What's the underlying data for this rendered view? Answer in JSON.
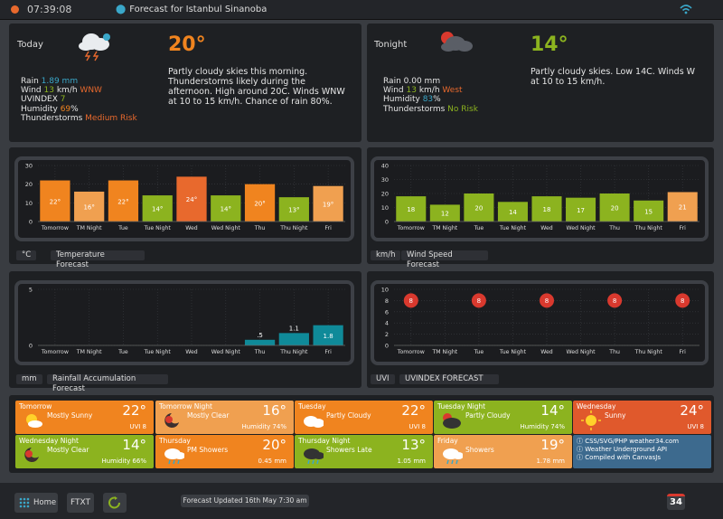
{
  "topbar": {
    "time": "07:39:08",
    "location": "Forecast for Istanbul Sinanoba"
  },
  "today": {
    "title": "Today",
    "temp": "20°",
    "rain_label": "Rain",
    "rain_value": "1.89 mm",
    "wind_label": "Wind",
    "wind_speed": "13",
    "wind_unit": "km/h",
    "wind_dir": "WNW",
    "uv_label": "UVINDEX",
    "uv_value": "7",
    "humidity_label": "Humidity",
    "humidity_value": "69",
    "humidity_unit": "%",
    "storm_label": "Thunderstorms",
    "storm_value": "Medium Risk",
    "description": "Partly cloudy skies this morning. Thunderstorms likely during the afternoon. High around 20C. Winds WNW at 10 to 15 km/h. Chance of rain 80%.",
    "colors": {
      "temp": "#f0841f",
      "rain": "#3aa7c9",
      "wind": "#8cb31f",
      "dir": "#e8692d",
      "uv": "#8cb31f",
      "humidity": "#f0841f",
      "storm": "#e8692d"
    }
  },
  "tonight": {
    "title": "Tonight",
    "temp": "14°",
    "rain_label": "Rain",
    "rain_value": "0.00 mm",
    "wind_label": "Wind",
    "wind_speed": "13",
    "wind_unit": "km/h",
    "wind_dir": "West",
    "humidity_label": "Humidity",
    "humidity_value": "83",
    "humidity_unit": "%",
    "storm_label": "Thunderstorms",
    "storm_value": "No Risk",
    "description": "Partly cloudy skies. Low 14C. Winds W at 10 to 15 km/h.",
    "colors": {
      "temp": "#8cb31f",
      "wind": "#8cb31f",
      "dir": "#e8692d",
      "humidity": "#3aa7c9",
      "storm": "#8cb31f"
    }
  },
  "chart_data": [
    {
      "type": "bar",
      "title": "Temperature Forecast",
      "unit": "°C",
      "categories": [
        "Tomorrow",
        "TM Night",
        "Tue",
        "Tue Night",
        "Wed",
        "Wed Night",
        "Thu",
        "Thu Night",
        "Fri"
      ],
      "values": [
        22,
        16,
        22,
        14,
        24,
        14,
        20,
        13,
        19
      ],
      "labels": [
        "22°",
        "16°",
        "22°",
        "14°",
        "24°",
        "14°",
        "20°",
        "13°",
        "19°"
      ],
      "colors": [
        "#f0841f",
        "#f0a050",
        "#f0841f",
        "#8cb31f",
        "#e8692d",
        "#8cb31f",
        "#f0841f",
        "#8cb31f",
        "#f0a050"
      ],
      "ylim": [
        0,
        30
      ],
      "yticks": [
        "0",
        "10",
        "20",
        "30"
      ]
    },
    {
      "type": "bar",
      "title": "Wind Speed Forecast",
      "unit": "km/h",
      "categories": [
        "Tomorrow",
        "TM Night",
        "Tue",
        "Tue Night",
        "Wed",
        "Wed Night",
        "Thu",
        "Thu Night",
        "Fri"
      ],
      "values": [
        18,
        12,
        20,
        14,
        18,
        17,
        20,
        15,
        21
      ],
      "labels": [
        "18",
        "12",
        "20",
        "14",
        "18",
        "17",
        "20",
        "15",
        "21"
      ],
      "colors": [
        "#8cb31f",
        "#8cb31f",
        "#8cb31f",
        "#8cb31f",
        "#8cb31f",
        "#8cb31f",
        "#8cb31f",
        "#8cb31f",
        "#f0a050"
      ],
      "ylim": [
        0,
        40
      ],
      "yticks": [
        "0",
        "10",
        "20",
        "30",
        "40"
      ]
    },
    {
      "type": "bar",
      "title": "Rainfall Accumulation Forecast",
      "unit": "mm",
      "categories": [
        "Tomorrow",
        "TM Night",
        "Tue",
        "Tue Night",
        "Wed",
        "Wed Night",
        "Thu",
        "Thu Night",
        "Fri"
      ],
      "values": [
        0,
        0,
        0,
        0,
        0,
        0,
        0.5,
        1.1,
        1.8
      ],
      "labels": [
        "",
        "",
        "",
        "",
        "",
        "",
        ".5",
        "1.1",
        "1.8"
      ],
      "colors": [
        "#0f8a99",
        "#0f8a99",
        "#0f8a99",
        "#0f8a99",
        "#0f8a99",
        "#0f8a99",
        "#0f8a99",
        "#0f8a99",
        "#0f8a99"
      ],
      "ylim": [
        0,
        5
      ],
      "yticks": [
        "0",
        "5"
      ]
    },
    {
      "type": "scatter",
      "title": "UVINDEX FORECAST",
      "unit": "UVI",
      "categories": [
        "Tomorrow",
        "TM Night",
        "Tue",
        "Tue Night",
        "Wed",
        "Wed Night",
        "Thu",
        "Thu Night",
        "Fri"
      ],
      "values": [
        8,
        null,
        8,
        null,
        8,
        null,
        8,
        null,
        8
      ],
      "labels": [
        "8",
        "",
        "8",
        "",
        "8",
        "",
        "8",
        "",
        "8"
      ],
      "colors": [
        "#d9392e"
      ],
      "ylim": [
        0,
        10
      ],
      "yticks": [
        "0",
        "2",
        "4",
        "6",
        "8",
        "10"
      ]
    }
  ],
  "forecast_cards": [
    {
      "name": "Tomorrow",
      "desc": "Mostly Sunny",
      "temp": "22°",
      "extra": "UVI 8",
      "bg": "#f0841f",
      "icon": "sun-cloud-icon"
    },
    {
      "name": "Tomorrow Night",
      "desc": "Mostly Clear",
      "temp": "16°",
      "extra": "Humidity 74%",
      "bg": "#f0a050",
      "icon": "moon-icon"
    },
    {
      "name": "Tuesday",
      "desc": "Partly Cloudy",
      "temp": "22°",
      "extra": "UVI 8",
      "bg": "#f0841f",
      "icon": "cloud-icon"
    },
    {
      "name": "Tuesday Night",
      "desc": "Partly Cloudy",
      "temp": "14°",
      "extra": "Humidity 74%",
      "bg": "#8cb31f",
      "icon": "night-cloud-icon"
    },
    {
      "name": "Wednesday",
      "desc": "Sunny",
      "temp": "24°",
      "extra": "UVI 8",
      "bg": "#e0592c",
      "icon": "sun-icon"
    },
    {
      "name": "Wednesday Night",
      "desc": "Mostly Clear",
      "temp": "14°",
      "extra": "Humidity 66%",
      "bg": "#8cb31f",
      "icon": "moon-icon"
    },
    {
      "name": "Thursday",
      "desc": "PM Showers",
      "temp": "20°",
      "extra": "0.45 mm",
      "bg": "#f0841f",
      "icon": "shower-icon"
    },
    {
      "name": "Thursday Night",
      "desc": "Showers Late",
      "temp": "13°",
      "extra": "1.05 mm",
      "bg": "#8cb31f",
      "icon": "night-shower-icon"
    },
    {
      "name": "Friday",
      "desc": "Showers",
      "temp": "19°",
      "extra": "1.78 mm",
      "bg": "#f0a050",
      "icon": "shower-icon"
    }
  ],
  "credits": {
    "line1": "ⓘ CSS/SVG/PHP weather34.com",
    "line2": "ⓘ Weather Underground API",
    "line3": "ⓘ Compiled with CanvasJs",
    "bg": "#3d6a8e"
  },
  "bottombar": {
    "home_label": "Home",
    "ftxt_label": "FTXT",
    "updated": "Forecast Updated 16th May 7:30 am",
    "badge_label": "34"
  }
}
